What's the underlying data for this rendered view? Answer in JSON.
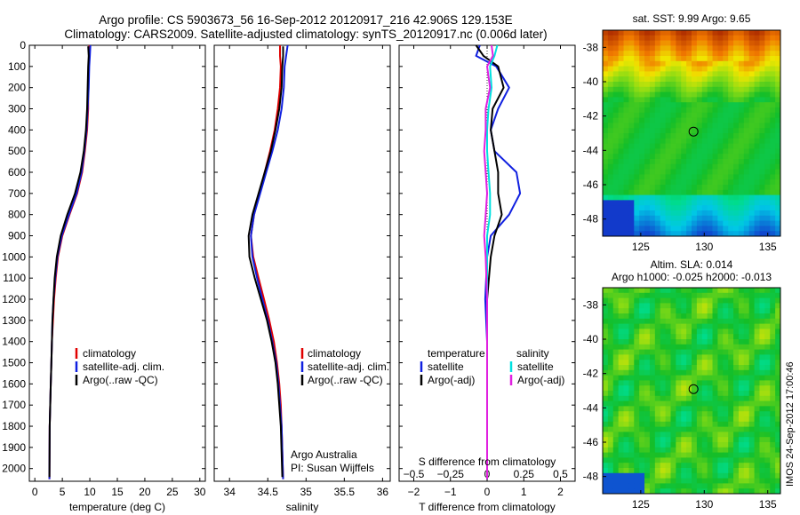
{
  "header": {
    "title_line1": "Argo profile: CS 5903673_56 16-Sep-2012 20120917_216 42.906S 129.153E",
    "title_line2": "Climatology: CARS2009. Satellite-adjusted climatology: synTS_20120917.nc (0.006d later)"
  },
  "depth_axis": {
    "ylim": [
      0,
      2060
    ],
    "ticks": [
      0,
      100,
      200,
      300,
      400,
      500,
      600,
      700,
      800,
      900,
      1000,
      1100,
      1200,
      1300,
      1400,
      1500,
      1600,
      1700,
      1800,
      1900,
      2000
    ],
    "labels": [
      "0",
      "100",
      "200",
      "300",
      "400",
      "500",
      "600",
      "700",
      "800",
      "900",
      "1000",
      "1100",
      "1200",
      "1300",
      "1400",
      "1500",
      "1600",
      "1700",
      "1800",
      "1900",
      "2000"
    ]
  },
  "colors": {
    "climatology": "#e00000",
    "satellite": "#1020e0",
    "argo": "#000000",
    "sal_satellite": "#00e0e0",
    "sal_argo": "#e020e0"
  },
  "chart_data": [
    {
      "type": "line",
      "name_key": "temperature-panel",
      "xlabel": "temperature (deg C)",
      "xlim": [
        -1,
        31
      ],
      "xticks": [
        0,
        5,
        10,
        15,
        20,
        25,
        30
      ],
      "xtick_labels": [
        "0",
        "5",
        "10",
        "15",
        "20",
        "25",
        "30"
      ],
      "legend": {
        "placement": "lower-center",
        "entries": [
          "climatology",
          "satellite-adj. clim.",
          "Argo(..raw -QC)"
        ]
      },
      "series": [
        {
          "name": "climatology",
          "color": "climatology",
          "x": [
            9.9,
            9.9,
            9.8,
            9.7,
            9.7,
            9.5,
            9.1,
            8.6,
            7.7,
            6.3,
            5.0,
            4.2,
            3.8,
            3.5,
            3.3,
            3.1,
            3.0,
            2.9,
            2.8,
            2.7,
            2.65
          ],
          "y": [
            0,
            50,
            100,
            200,
            300,
            400,
            500,
            600,
            700,
            800,
            900,
            1000,
            1100,
            1200,
            1300,
            1400,
            1500,
            1600,
            1700,
            1800,
            2050
          ]
        },
        {
          "name": "satellite-adj. clim.",
          "color": "satellite",
          "x": [
            10.1,
            10.0,
            9.9,
            9.8,
            9.6,
            9.4,
            9.0,
            8.5,
            7.6,
            6.2,
            4.9,
            4.1,
            3.7,
            3.4,
            3.2,
            3.1,
            3.0,
            2.9,
            2.8,
            2.7,
            2.65
          ],
          "y": [
            0,
            50,
            100,
            200,
            300,
            400,
            500,
            600,
            700,
            800,
            900,
            1000,
            1100,
            1200,
            1300,
            1400,
            1500,
            1600,
            1700,
            1800,
            2050
          ]
        },
        {
          "name": "Argo(..raw -QC)",
          "color": "argo",
          "x": [
            9.7,
            9.8,
            9.7,
            9.6,
            9.5,
            9.3,
            8.9,
            8.3,
            7.3,
            5.9,
            4.7,
            4.0,
            3.6,
            3.4,
            3.2,
            3.1,
            3.0,
            2.9,
            2.8,
            2.7,
            2.65
          ],
          "y": [
            5,
            50,
            100,
            200,
            300,
            400,
            500,
            600,
            700,
            800,
            900,
            1000,
            1100,
            1200,
            1300,
            1400,
            1500,
            1600,
            1700,
            1800,
            2040
          ]
        }
      ]
    },
    {
      "type": "line",
      "name_key": "salinity-panel",
      "xlabel": "salinity",
      "xlim": [
        33.8,
        36.1
      ],
      "xticks": [
        34,
        34.5,
        35,
        35.5,
        36
      ],
      "xtick_labels": [
        "34",
        "34.5",
        "35",
        "35.5",
        "36"
      ],
      "legend": {
        "placement": "lower-center",
        "entries": [
          "climatology",
          "satellite-adj. clim.",
          "Argo(..raw -QC)"
        ]
      },
      "annotation": {
        "line1": "Argo Australia",
        "line2": "PI: Susan Wijffels"
      },
      "series": [
        {
          "name": "climatology",
          "color": "climatology",
          "x": [
            34.66,
            34.66,
            34.67,
            34.66,
            34.63,
            34.59,
            34.53,
            34.46,
            34.39,
            34.32,
            34.28,
            34.31,
            34.38,
            34.45,
            34.52,
            34.58,
            34.62,
            34.65,
            34.67,
            34.68,
            34.7
          ],
          "y": [
            0,
            50,
            100,
            200,
            300,
            400,
            500,
            600,
            700,
            800,
            900,
            1000,
            1100,
            1200,
            1300,
            1400,
            1500,
            1600,
            1700,
            1800,
            2050
          ]
        },
        {
          "name": "satellite-adj. clim.",
          "color": "satellite",
          "x": [
            34.76,
            34.74,
            34.72,
            34.71,
            34.68,
            34.63,
            34.56,
            34.48,
            34.4,
            34.32,
            34.28,
            34.3,
            34.36,
            34.43,
            34.5,
            34.56,
            34.61,
            34.64,
            34.66,
            34.68,
            34.7
          ],
          "y": [
            0,
            50,
            100,
            200,
            300,
            400,
            500,
            600,
            700,
            800,
            900,
            1000,
            1100,
            1200,
            1300,
            1400,
            1500,
            1600,
            1700,
            1800,
            2050
          ]
        },
        {
          "name": "Argo(..raw -QC)",
          "color": "argo",
          "x": [
            34.7,
            34.7,
            34.69,
            34.68,
            34.65,
            34.6,
            34.54,
            34.46,
            34.38,
            34.3,
            34.25,
            34.26,
            34.33,
            34.41,
            34.49,
            34.55,
            34.6,
            34.63,
            34.65,
            34.67,
            34.69
          ],
          "y": [
            5,
            50,
            100,
            200,
            300,
            400,
            500,
            600,
            700,
            800,
            900,
            1000,
            1100,
            1200,
            1300,
            1400,
            1500,
            1600,
            1700,
            1800,
            2040
          ]
        }
      ]
    },
    {
      "type": "line",
      "name_key": "difference-panel",
      "xlabel": "T difference from climatology",
      "xlabel_top": "S difference from climatology",
      "xlim": [
        -2.4,
        2.4
      ],
      "xticks": [
        -2,
        -1,
        0,
        1,
        2
      ],
      "xtick_labels": [
        "−2",
        "−1",
        "0",
        "1",
        "2"
      ],
      "sticks": [
        -0.5,
        -0.25,
        0,
        0.25,
        0.5
      ],
      "stick_labels": [
        "−0.5",
        "−0.25",
        "0",
        "0.25",
        "0.5"
      ],
      "s_scale": 4,
      "legend": {
        "placement": "lower-center",
        "temperature_heading": "temperature",
        "salinity_heading": "salinity",
        "entries": [
          "satellite",
          "Argo(-adj)",
          "satellite",
          "Argo(-adj)"
        ]
      },
      "series": [
        {
          "name": "satellite",
          "group": "temperature",
          "color": "satellite",
          "x": [
            -0.2,
            -0.3,
            0.25,
            0.6,
            0.3,
            0.1,
            0.2,
            0.8,
            0.9,
            0.6,
            0.1,
            0.0,
            -0.05,
            0.0,
            0.0,
            0.0,
            0.0,
            0.0,
            0.0,
            0.0
          ],
          "y": [
            0,
            50,
            100,
            200,
            300,
            400,
            500,
            600,
            700,
            800,
            900,
            1000,
            1200,
            1400,
            1500,
            1600,
            1700,
            1800,
            1900,
            2050
          ]
        },
        {
          "name": "Argo(-adj)",
          "group": "temperature",
          "color": "argo",
          "x": [
            -0.3,
            -0.1,
            0.3,
            0.45,
            0.15,
            0.1,
            0.2,
            0.3,
            0.3,
            0.4,
            0.2,
            0.1,
            0.0,
            0.0,
            0.0,
            0.0,
            0.0,
            0.0,
            0.0,
            0.0
          ],
          "y": [
            0,
            50,
            100,
            200,
            300,
            400,
            500,
            600,
            700,
            800,
            900,
            1000,
            1200,
            1400,
            1500,
            1600,
            1700,
            1800,
            1900,
            2050
          ]
        },
        {
          "name": "satellite",
          "group": "salinity",
          "color": "sal_satellite",
          "x": [
            0.07,
            0.05,
            0.02,
            0.03,
            0.01,
            0.0,
            0.0,
            0.01,
            0.02,
            0.02,
            0.0,
            0.0,
            0.0,
            0.0,
            0.0,
            0.0,
            0.0,
            0.0,
            0.0,
            0.0
          ],
          "y": [
            0,
            50,
            100,
            200,
            300,
            400,
            500,
            600,
            700,
            800,
            900,
            1000,
            1200,
            1400,
            1500,
            1600,
            1700,
            1800,
            1900,
            2050
          ]
        },
        {
          "name": "Argo(-adj)",
          "group": "salinity",
          "color": "sal_argo",
          "x": [
            0.03,
            0.04,
            0.0,
            0.02,
            -0.01,
            -0.01,
            -0.02,
            -0.01,
            0.0,
            -0.01,
            -0.02,
            -0.01,
            0.0,
            0.0,
            0.0,
            0.0,
            0.0,
            0.0,
            0.0,
            0.0
          ],
          "y": [
            0,
            50,
            100,
            200,
            300,
            400,
            500,
            600,
            700,
            800,
            900,
            1000,
            1200,
            1400,
            1500,
            1600,
            1700,
            1800,
            1900,
            2050
          ]
        }
      ]
    },
    {
      "type": "heatmap",
      "name_key": "sst-map",
      "title": "sat. SST: 9.99 Argo: 9.65",
      "xlim": [
        122,
        136
      ],
      "ylim": [
        -49,
        -37
      ],
      "xticks": [
        125,
        130,
        135
      ],
      "yticks": [
        -38,
        -40,
        -42,
        -44,
        -46,
        -48
      ],
      "xtick_labels": [
        "125",
        "130",
        "135"
      ],
      "ytick_labels": [
        "-38",
        "-40",
        "-42",
        "-44",
        "-46",
        "-48"
      ],
      "marker": {
        "lon": 129.153,
        "lat": -42.906
      }
    },
    {
      "type": "heatmap",
      "name_key": "sla-map",
      "title": "Altim. SLA: 0.014",
      "subtitle": "Argo h1000: -0.025 h2000: -0.013",
      "xlim": [
        122,
        136
      ],
      "ylim": [
        -49,
        -37
      ],
      "xticks": [
        125,
        130,
        135
      ],
      "yticks": [
        -38,
        -40,
        -42,
        -44,
        -46,
        -48
      ],
      "xtick_labels": [
        "125",
        "130",
        "135"
      ],
      "ytick_labels": [
        "-38",
        "-40",
        "-42",
        "-44",
        "-46",
        "-48"
      ],
      "marker": {
        "lon": 129.153,
        "lat": -42.906
      }
    }
  ],
  "footer": {
    "side_text": "IMOS 24-Sep-2012 17:00:46"
  }
}
